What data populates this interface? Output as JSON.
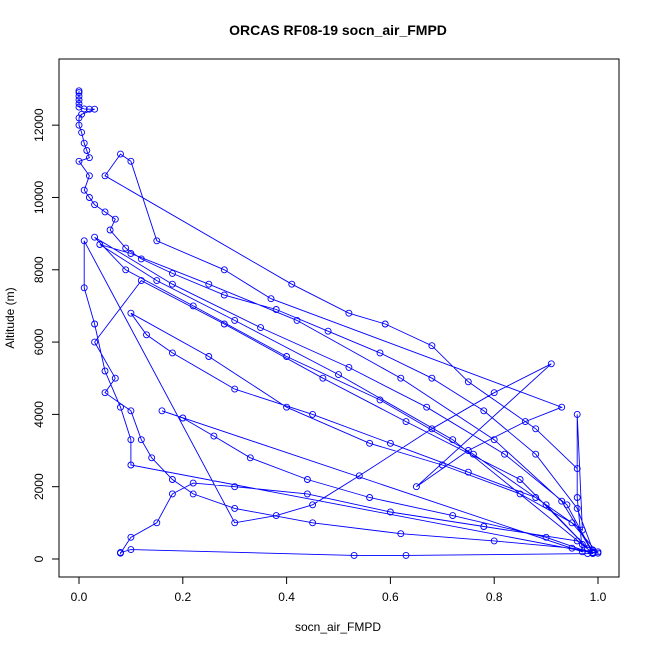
{
  "chart_data": {
    "type": "scatter",
    "title": "ORCAS RF08-19 socn_air_FMPD",
    "xlabel": "socn_air_FMPD",
    "ylabel": "Altitude (m)",
    "xlim": [
      0,
      1
    ],
    "ylim": [
      0,
      13000
    ],
    "x_ticks": [
      "0.0",
      "0.2",
      "0.4",
      "0.6",
      "0.8",
      "1.0"
    ],
    "y_ticks": [
      "0",
      "2000",
      "4000",
      "6000",
      "8000",
      "10000",
      "12000"
    ],
    "grid": false,
    "color": "#0000ff",
    "marker": "open-circle",
    "lines_connect_points": true,
    "series": [
      {
        "values_xy": [
          [
            0.0,
            12950
          ],
          [
            0.0,
            12900
          ],
          [
            0.0,
            12800
          ],
          [
            0.0,
            12700
          ],
          [
            0.0,
            12600
          ],
          [
            0.0,
            12500
          ],
          [
            0.01,
            12450
          ],
          [
            0.02,
            12440
          ],
          [
            0.03,
            12440
          ],
          [
            0.005,
            12300
          ],
          [
            0.0,
            12200
          ],
          [
            0.0,
            12000
          ],
          [
            0.005,
            11800
          ],
          [
            0.01,
            11500
          ],
          [
            0.015,
            11300
          ],
          [
            0.02,
            11100
          ],
          [
            0.0,
            11000
          ],
          [
            0.02,
            10600
          ],
          [
            0.01,
            10200
          ],
          [
            0.02,
            10000
          ],
          [
            0.03,
            9800
          ],
          [
            0.05,
            9600
          ],
          [
            0.07,
            9400
          ],
          [
            0.06,
            9100
          ],
          [
            0.09,
            8600
          ],
          [
            0.12,
            8300
          ],
          [
            0.18,
            7900
          ],
          [
            0.28,
            7300
          ],
          [
            0.38,
            6900
          ],
          [
            0.48,
            6300
          ],
          [
            0.58,
            5700
          ],
          [
            0.68,
            5000
          ],
          [
            0.78,
            4100
          ],
          [
            0.88,
            2900
          ],
          [
            0.96,
            1400
          ],
          [
            0.99,
            250
          ],
          [
            0.98,
            150
          ],
          [
            1.0,
            200
          ],
          [
            0.97,
            400
          ],
          [
            0.72,
            3300
          ],
          [
            0.5,
            5100
          ],
          [
            0.3,
            6600
          ],
          [
            0.15,
            7700
          ],
          [
            0.04,
            8700
          ],
          [
            0.1,
            8450
          ],
          [
            0.25,
            7600
          ],
          [
            0.42,
            6600
          ],
          [
            0.62,
            5000
          ],
          [
            0.8,
            3300
          ],
          [
            0.93,
            1600
          ],
          [
            0.99,
            180
          ],
          [
            0.94,
            1500
          ],
          [
            0.82,
            2900
          ],
          [
            0.67,
            4200
          ],
          [
            0.52,
            5300
          ],
          [
            0.35,
            6400
          ],
          [
            0.18,
            7600
          ],
          [
            0.03,
            8900
          ],
          [
            0.09,
            8000
          ],
          [
            0.22,
            7000
          ],
          [
            0.4,
            5600
          ],
          [
            0.58,
            4400
          ],
          [
            0.76,
            2900
          ],
          [
            0.9,
            1500
          ],
          [
            0.98,
            300
          ],
          [
            0.85,
            2200
          ],
          [
            0.63,
            3800
          ],
          [
            0.47,
            5000
          ],
          [
            0.28,
            6500
          ],
          [
            0.12,
            7700
          ],
          [
            0.03,
            6000
          ],
          [
            0.07,
            5000
          ],
          [
            0.05,
            4600
          ],
          [
            0.1,
            4100
          ],
          [
            0.12,
            3300
          ],
          [
            0.14,
            2800
          ],
          [
            0.18,
            2200
          ],
          [
            0.22,
            1800
          ],
          [
            0.3,
            1400
          ],
          [
            0.45,
            1000
          ],
          [
            0.62,
            700
          ],
          [
            0.8,
            500
          ],
          [
            0.95,
            300
          ],
          [
            1.0,
            160
          ],
          [
            0.95,
            1000
          ],
          [
            0.85,
            1800
          ],
          [
            0.7,
            2600
          ],
          [
            0.56,
            3200
          ],
          [
            0.4,
            4200
          ],
          [
            0.25,
            5600
          ],
          [
            0.1,
            6800
          ],
          [
            0.13,
            6200
          ],
          [
            0.18,
            5700
          ],
          [
            0.3,
            4700
          ],
          [
            0.45,
            4000
          ],
          [
            0.6,
            3200
          ],
          [
            0.75,
            2400
          ],
          [
            0.88,
            1700
          ],
          [
            0.97,
            800
          ],
          [
            0.96,
            4000
          ],
          [
            0.96,
            1700
          ],
          [
            0.97,
            200
          ],
          [
            0.16,
            4100
          ],
          [
            0.2,
            3900
          ],
          [
            0.26,
            3400
          ],
          [
            0.33,
            2800
          ],
          [
            0.44,
            2200
          ],
          [
            0.56,
            1700
          ],
          [
            0.72,
            1200
          ],
          [
            0.9,
            600
          ],
          [
            0.99,
            150
          ],
          [
            0.63,
            100
          ],
          [
            0.53,
            100
          ],
          [
            0.1,
            260
          ],
          [
            0.08,
            180
          ],
          [
            0.08,
            160
          ],
          [
            0.1,
            600
          ],
          [
            0.15,
            1000
          ],
          [
            0.18,
            1800
          ],
          [
            0.22,
            2100
          ],
          [
            0.3,
            2000
          ],
          [
            0.44,
            1800
          ],
          [
            0.6,
            1300
          ],
          [
            0.78,
            900
          ],
          [
            0.96,
            500
          ],
          [
            0.99,
            170
          ],
          [
            0.1,
            2600
          ],
          [
            0.1,
            3300
          ],
          [
            0.08,
            4200
          ],
          [
            0.05,
            5200
          ],
          [
            0.03,
            6500
          ],
          [
            0.01,
            7500
          ],
          [
            0.01,
            8800
          ],
          [
            0.3,
            1000
          ],
          [
            0.38,
            1200
          ],
          [
            0.45,
            1500
          ],
          [
            0.54,
            2300
          ],
          [
            0.68,
            3600
          ],
          [
            0.8,
            4600
          ],
          [
            0.91,
            5400
          ],
          [
            0.65,
            2000
          ],
          [
            0.75,
            3000
          ],
          [
            0.86,
            3800
          ],
          [
            0.93,
            4200
          ],
          [
            0.37,
            7200
          ],
          [
            0.28,
            8000
          ],
          [
            0.15,
            8800
          ],
          [
            0.1,
            11000
          ],
          [
            0.08,
            11200
          ],
          [
            0.05,
            10600
          ],
          [
            0.41,
            7600
          ],
          [
            0.52,
            6800
          ],
          [
            0.59,
            6500
          ],
          [
            0.68,
            5900
          ],
          [
            0.75,
            4900
          ],
          [
            0.88,
            3600
          ],
          [
            0.96,
            2500
          ]
        ]
      }
    ]
  }
}
